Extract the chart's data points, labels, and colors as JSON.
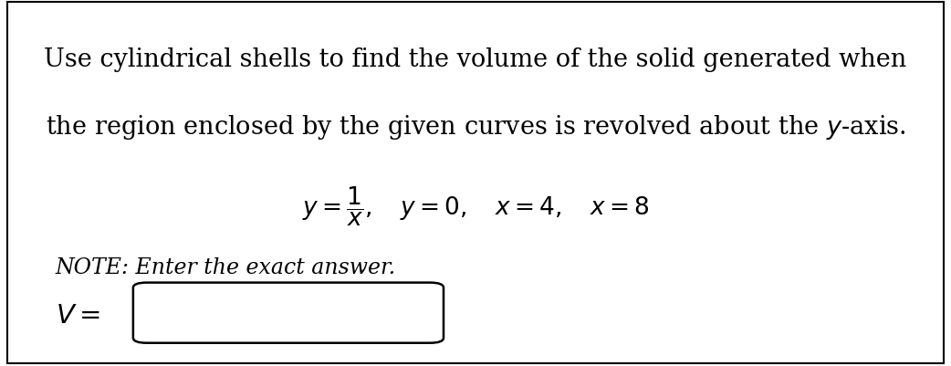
{
  "background_color": "#ffffff",
  "border_color": "#000000",
  "line1": "Use cylindrical shells to find the volume of the solid generated when",
  "line2_prefix": "the region enclosed by the given curves is revolved about the ",
  "line2_suffix": "-axis.",
  "equation_main": "$y = \\dfrac{1}{x},\\quad y = 0, \\quad x = 4, \\quad x = 8$",
  "note_text": "NOTE: Enter the exact answer.",
  "v_label": "$V =$",
  "text_color": "#000000",
  "main_fontsize": 19.5,
  "eq_fontsize": 19,
  "note_fontsize": 17,
  "v_fontsize": 21
}
